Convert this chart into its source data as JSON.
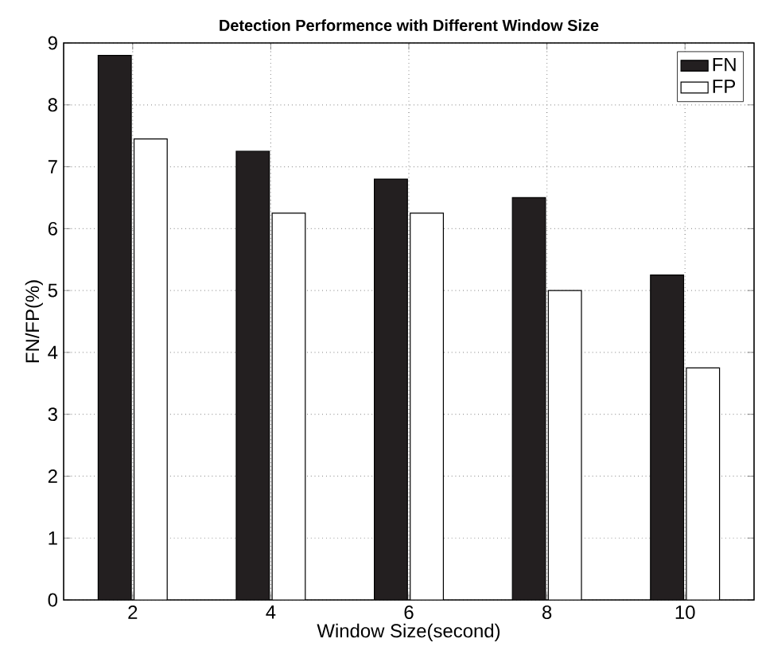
{
  "chart_data": {
    "type": "bar",
    "title": "Detection Performence with Different Window Size",
    "xlabel": "Window Size(second)",
    "ylabel": "FN/FP(%)",
    "x": [
      2,
      4,
      6,
      8,
      10
    ],
    "series": [
      {
        "name": "FN",
        "color": "#231f20",
        "values": [
          8.8,
          7.25,
          6.8,
          6.5,
          5.25
        ]
      },
      {
        "name": "FP",
        "color": "#ffffff",
        "values": [
          7.45,
          6.25,
          6.25,
          5.0,
          3.75
        ]
      }
    ],
    "xlim": [
      1,
      11
    ],
    "xticks": [
      2,
      4,
      6,
      8,
      10
    ],
    "ylim": [
      0,
      9
    ],
    "yticks": [
      0,
      1,
      2,
      3,
      4,
      5,
      6,
      7,
      8,
      9
    ],
    "grid": true,
    "legend": "top right"
  }
}
